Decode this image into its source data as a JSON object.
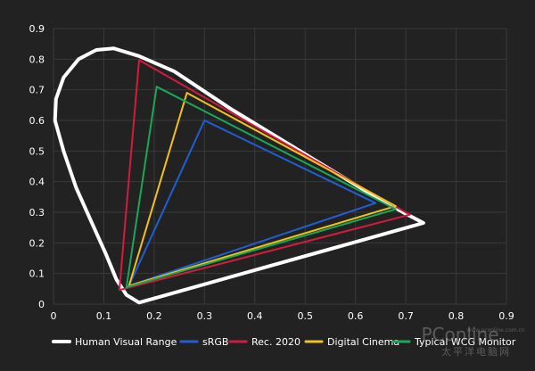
{
  "chart_data": {
    "type": "line",
    "title": "",
    "xlabel": "",
    "ylabel": "",
    "xlim": [
      0,
      0.9
    ],
    "ylim": [
      0,
      0.9
    ],
    "x_ticks": [
      "0",
      "0.1",
      "0.2",
      "0.3",
      "0.4",
      "0.5",
      "0.6",
      "0.7",
      "0.8",
      "0.9"
    ],
    "y_ticks": [
      "0",
      "0.1",
      "0.2",
      "0.3",
      "0.4",
      "0.5",
      "0.6",
      "0.7",
      "0.8",
      "0.9"
    ],
    "grid": true,
    "legend_position": "bottom",
    "series": [
      {
        "name": "Human Visual Range",
        "color": "#ffffff",
        "closed": true,
        "points": [
          [
            0.735,
            0.265
          ],
          [
            0.17,
            0.005
          ],
          [
            0.145,
            0.03
          ],
          [
            0.125,
            0.08
          ],
          [
            0.105,
            0.16
          ],
          [
            0.075,
            0.27
          ],
          [
            0.045,
            0.38
          ],
          [
            0.02,
            0.5
          ],
          [
            0.003,
            0.6
          ],
          [
            0.005,
            0.67
          ],
          [
            0.02,
            0.74
          ],
          [
            0.05,
            0.8
          ],
          [
            0.085,
            0.83
          ],
          [
            0.12,
            0.835
          ],
          [
            0.17,
            0.81
          ],
          [
            0.24,
            0.76
          ],
          [
            0.35,
            0.64
          ],
          [
            0.5,
            0.49
          ],
          [
            0.62,
            0.37
          ],
          [
            0.7,
            0.295
          ]
        ]
      },
      {
        "name": "sRGB",
        "color": "#1f5fd6",
        "closed": true,
        "points": [
          [
            0.64,
            0.33
          ],
          [
            0.3,
            0.6
          ],
          [
            0.15,
            0.06
          ]
        ]
      },
      {
        "name": "Rec. 2020",
        "color": "#d21c3c",
        "closed": true,
        "points": [
          [
            0.708,
            0.292
          ],
          [
            0.17,
            0.797
          ],
          [
            0.131,
            0.046
          ]
        ]
      },
      {
        "name": "Digital Cinema",
        "color": "#f2c21a",
        "closed": true,
        "points": [
          [
            0.68,
            0.32
          ],
          [
            0.265,
            0.69
          ],
          [
            0.15,
            0.06
          ]
        ]
      },
      {
        "name": "Typical WCG Monitor",
        "color": "#18a957",
        "closed": true,
        "points": [
          [
            0.68,
            0.31
          ],
          [
            0.205,
            0.71
          ],
          [
            0.145,
            0.055
          ]
        ]
      }
    ]
  },
  "watermark": {
    "brand": "PConline",
    "url": "www.pconline.com.cn",
    "cn": "太平洋电脑网"
  }
}
